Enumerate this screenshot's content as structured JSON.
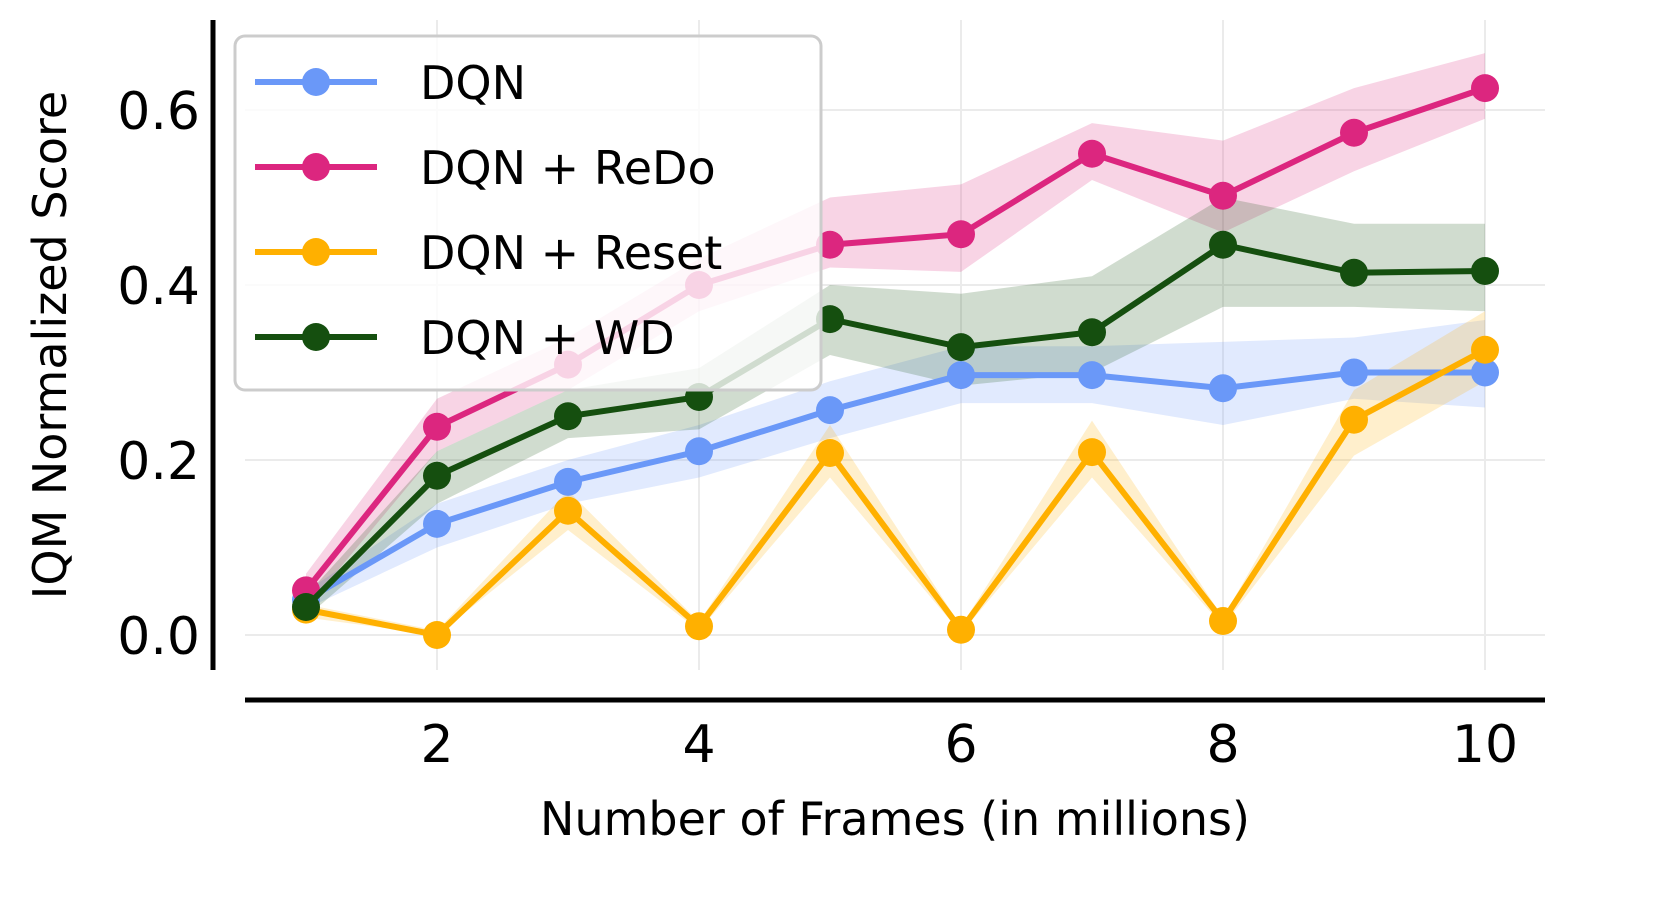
{
  "chart_data": {
    "type": "line",
    "title": "",
    "xlabel": "Number of Frames (in millions)",
    "ylabel": "IQM Normalized Score",
    "xlim": [
      1,
      10
    ],
    "ylim": [
      0,
      0.6
    ],
    "xticks": [
      "2",
      "4",
      "6",
      "8",
      "10"
    ],
    "yticks": [
      "0.0",
      "0.2",
      "0.4",
      "0.6"
    ],
    "grid": true,
    "legend_position": "top-left",
    "x": [
      1,
      2,
      3,
      4,
      5,
      6,
      7,
      8,
      9,
      10
    ],
    "series": [
      {
        "name": "DQN",
        "color": "#6a98f8",
        "values": [
          0.04,
          0.127,
          0.175,
          0.21,
          0.257,
          0.297,
          0.297,
          0.282,
          0.3,
          0.3
        ],
        "lower": [
          0.03,
          0.1,
          0.15,
          0.18,
          0.225,
          0.265,
          0.265,
          0.24,
          0.27,
          0.26
        ],
        "upper": [
          0.05,
          0.15,
          0.2,
          0.24,
          0.29,
          0.33,
          0.33,
          0.335,
          0.34,
          0.36
        ]
      },
      {
        "name": "DQN + ReDo",
        "color": "#dc267f",
        "values": [
          0.051,
          0.238,
          0.309,
          0.4,
          0.446,
          0.458,
          0.55,
          0.502,
          0.574,
          0.625
        ],
        "lower": [
          0.03,
          0.21,
          0.28,
          0.37,
          0.42,
          0.415,
          0.52,
          0.46,
          0.53,
          0.59
        ],
        "upper": [
          0.07,
          0.27,
          0.34,
          0.43,
          0.5,
          0.515,
          0.585,
          0.565,
          0.625,
          0.665
        ]
      },
      {
        "name": "DQN + Reset",
        "color": "#ffb000",
        "values": [
          0.029,
          0.0,
          0.142,
          0.01,
          0.208,
          0.006,
          0.209,
          0.016,
          0.246,
          0.326
        ],
        "lower": [
          0.02,
          0.0,
          0.12,
          0.005,
          0.18,
          0.002,
          0.18,
          0.01,
          0.205,
          0.29
        ],
        "upper": [
          0.035,
          0.005,
          0.165,
          0.015,
          0.24,
          0.01,
          0.245,
          0.02,
          0.28,
          0.37
        ]
      },
      {
        "name": "DQN + WD",
        "color": "#154f0f",
        "values": [
          0.032,
          0.182,
          0.25,
          0.272,
          0.361,
          0.329,
          0.346,
          0.446,
          0.414,
          0.416
        ],
        "lower": [
          0.02,
          0.15,
          0.225,
          0.235,
          0.32,
          0.285,
          0.3,
          0.375,
          0.375,
          0.37
        ],
        "upper": [
          0.045,
          0.21,
          0.28,
          0.305,
          0.4,
          0.39,
          0.41,
          0.5,
          0.47,
          0.47
        ]
      }
    ]
  }
}
